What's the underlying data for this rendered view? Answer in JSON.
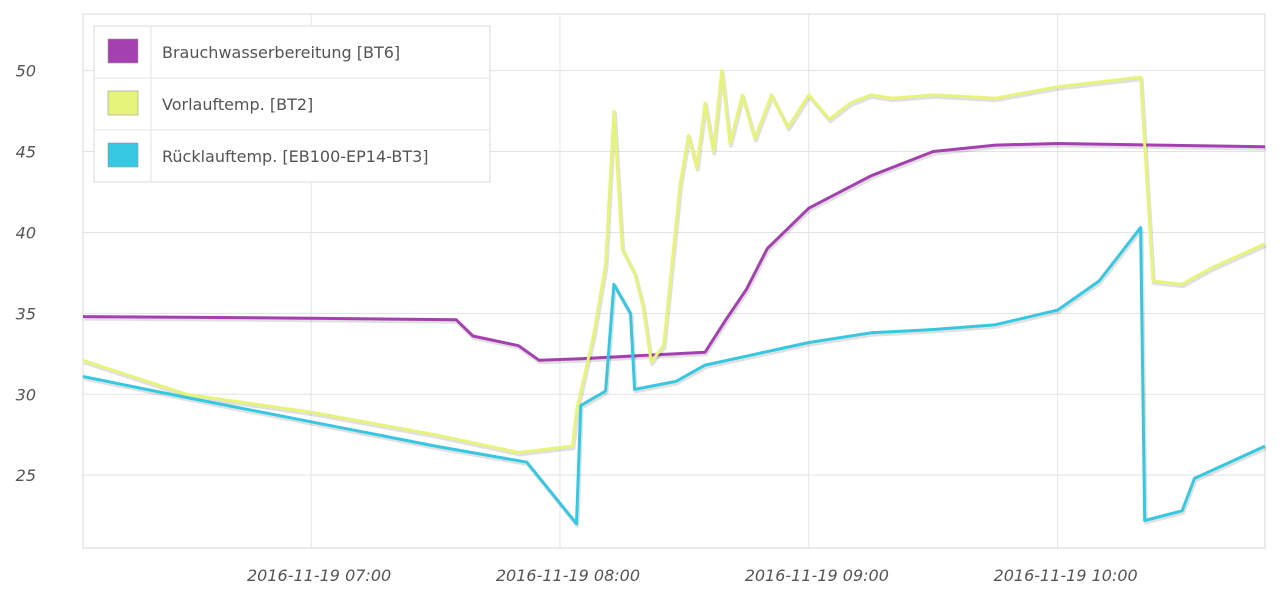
{
  "chart_data": {
    "type": "line",
    "x_axis": {
      "type": "time",
      "ticks": [
        "2016-11-19 07:00",
        "2016-11-19 08:00",
        "2016-11-19 09:00",
        "2016-11-19 10:00"
      ],
      "range": [
        "2016-11-19 06:05",
        "2016-11-19 10:50"
      ]
    },
    "y_axis": {
      "ticks": [
        25,
        30,
        35,
        40,
        45,
        50
      ],
      "range": [
        20.5,
        53.5
      ]
    },
    "grid": true,
    "legend": {
      "placement": "top-left"
    },
    "series": [
      {
        "name": "Brauchwasserbereitung [BT6]",
        "color": "#a540b0",
        "points": [
          [
            "2016-11-19 06:05",
            34.8
          ],
          [
            "2016-11-19 07:00",
            34.7
          ],
          [
            "2016-11-19 07:35",
            34.6
          ],
          [
            "2016-11-19 07:39",
            33.6
          ],
          [
            "2016-11-19 07:50",
            33.0
          ],
          [
            "2016-11-19 07:55",
            32.1
          ],
          [
            "2016-11-19 08:05",
            32.2
          ],
          [
            "2016-11-19 08:35",
            32.6
          ],
          [
            "2016-11-19 08:40",
            34.6
          ],
          [
            "2016-11-19 08:45",
            36.5
          ],
          [
            "2016-11-19 08:50",
            39.0
          ],
          [
            "2016-11-19 09:00",
            41.5
          ],
          [
            "2016-11-19 09:15",
            43.5
          ],
          [
            "2016-11-19 09:30",
            45.0
          ],
          [
            "2016-11-19 09:45",
            45.4
          ],
          [
            "2016-11-19 10:00",
            45.5
          ],
          [
            "2016-11-19 10:50",
            45.3
          ]
        ]
      },
      {
        "name": "Vorlauftemp. [BT2]",
        "color": "#e6f57a",
        "points": [
          [
            "2016-11-19 06:05",
            32.1
          ],
          [
            "2016-11-19 06:30",
            30.0
          ],
          [
            "2016-11-19 07:00",
            28.9
          ],
          [
            "2016-11-19 07:30",
            27.5
          ],
          [
            "2016-11-19 07:50",
            26.4
          ],
          [
            "2016-11-19 08:03",
            26.8
          ],
          [
            "2016-11-19 08:04",
            29.0
          ],
          [
            "2016-11-19 08:08",
            33.5
          ],
          [
            "2016-11-19 08:11",
            38.0
          ],
          [
            "2016-11-19 08:13",
            47.5
          ],
          [
            "2016-11-19 08:15",
            39.0
          ],
          [
            "2016-11-19 08:18",
            37.5
          ],
          [
            "2016-11-19 08:20",
            35.5
          ],
          [
            "2016-11-19 08:22",
            32.0
          ],
          [
            "2016-11-19 08:25",
            33.0
          ],
          [
            "2016-11-19 08:27",
            38.0
          ],
          [
            "2016-11-19 08:29",
            43.0
          ],
          [
            "2016-11-19 08:31",
            46.0
          ],
          [
            "2016-11-19 08:33",
            44.0
          ],
          [
            "2016-11-19 08:35",
            48.0
          ],
          [
            "2016-11-19 08:37",
            45.0
          ],
          [
            "2016-11-19 08:39",
            50.0
          ],
          [
            "2016-11-19 08:41",
            45.5
          ],
          [
            "2016-11-19 08:44",
            48.5
          ],
          [
            "2016-11-19 08:47",
            45.8
          ],
          [
            "2016-11-19 08:51",
            48.5
          ],
          [
            "2016-11-19 08:55",
            46.5
          ],
          [
            "2016-11-19 09:00",
            48.5
          ],
          [
            "2016-11-19 09:05",
            47.0
          ],
          [
            "2016-11-19 09:10",
            48.0
          ],
          [
            "2016-11-19 09:15",
            48.5
          ],
          [
            "2016-11-19 09:20",
            48.3
          ],
          [
            "2016-11-19 09:30",
            48.5
          ],
          [
            "2016-11-19 09:45",
            48.3
          ],
          [
            "2016-11-19 10:00",
            49.0
          ],
          [
            "2016-11-19 10:20",
            49.6
          ],
          [
            "2016-11-19 10:23",
            37.0
          ],
          [
            "2016-11-19 10:30",
            36.8
          ],
          [
            "2016-11-19 10:37",
            37.8
          ],
          [
            "2016-11-19 10:50",
            39.3
          ]
        ]
      },
      {
        "name": "Rücklauftemp. [EB100-EP14-BT3]",
        "color": "#36c8e0",
        "points": [
          [
            "2016-11-19 06:05",
            31.1
          ],
          [
            "2016-11-19 06:30",
            29.8
          ],
          [
            "2016-11-19 07:00",
            28.3
          ],
          [
            "2016-11-19 07:30",
            26.8
          ],
          [
            "2016-11-19 07:52",
            25.8
          ],
          [
            "2016-11-19 08:04",
            22.0
          ],
          [
            "2016-11-19 08:05",
            29.3
          ],
          [
            "2016-11-19 08:11",
            30.2
          ],
          [
            "2016-11-19 08:13",
            36.8
          ],
          [
            "2016-11-19 08:17",
            35.0
          ],
          [
            "2016-11-19 08:18",
            30.3
          ],
          [
            "2016-11-19 08:28",
            30.8
          ],
          [
            "2016-11-19 08:35",
            31.8
          ],
          [
            "2016-11-19 09:00",
            33.2
          ],
          [
            "2016-11-19 09:15",
            33.8
          ],
          [
            "2016-11-19 09:30",
            34.0
          ],
          [
            "2016-11-19 09:45",
            34.3
          ],
          [
            "2016-11-19 10:00",
            35.2
          ],
          [
            "2016-11-19 10:10",
            37.0
          ],
          [
            "2016-11-19 10:20",
            40.3
          ],
          [
            "2016-11-19 10:21",
            22.2
          ],
          [
            "2016-11-19 10:30",
            22.8
          ],
          [
            "2016-11-19 10:33",
            24.8
          ],
          [
            "2016-11-19 10:50",
            26.8
          ]
        ]
      }
    ]
  }
}
